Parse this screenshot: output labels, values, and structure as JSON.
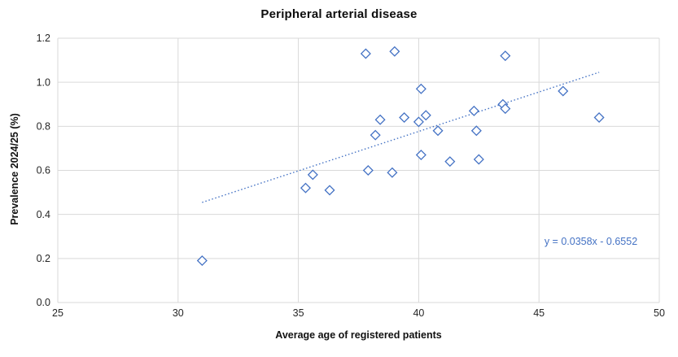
{
  "colors": {
    "marker": "#4472C4",
    "marker_fill": "#ffffff",
    "trendline": "#4472C4",
    "equation_text": "#4472C4",
    "gridline": "#D9D9D9",
    "tick_text": "#262626",
    "title_text": "#0d0d0d"
  },
  "chart_data": {
    "type": "scatter",
    "title": "Peripheral arterial disease",
    "xlabel": "Average age of registered patients",
    "ylabel": "Prevalence 2024/25 (%)",
    "xlim": [
      25,
      50
    ],
    "ylim": [
      0,
      1.2
    ],
    "x_ticks": [
      25,
      30,
      35,
      40,
      45,
      50
    ],
    "y_tick_labels": [
      "0.0",
      "0.2",
      "0.4",
      "0.6",
      "0.8",
      "1.0",
      "1.2"
    ],
    "grid": true,
    "legend": "none",
    "marker_style": "open-diamond",
    "series": [
      {
        "points": [
          [
            31.0,
            0.19
          ],
          [
            35.3,
            0.52
          ],
          [
            35.6,
            0.58
          ],
          [
            36.3,
            0.51
          ],
          [
            37.8,
            1.13
          ],
          [
            37.9,
            0.6
          ],
          [
            38.2,
            0.76
          ],
          [
            38.4,
            0.83
          ],
          [
            38.9,
            0.59
          ],
          [
            39.0,
            1.14
          ],
          [
            39.4,
            0.84
          ],
          [
            40.0,
            0.82
          ],
          [
            40.1,
            0.97
          ],
          [
            40.1,
            0.67
          ],
          [
            40.3,
            0.85
          ],
          [
            40.8,
            0.78
          ],
          [
            41.3,
            0.64
          ],
          [
            42.3,
            0.87
          ],
          [
            42.4,
            0.78
          ],
          [
            42.5,
            0.65
          ],
          [
            43.5,
            0.9
          ],
          [
            43.6,
            0.88
          ],
          [
            43.6,
            1.12
          ],
          [
            46.0,
            0.96
          ],
          [
            47.5,
            0.84
          ]
        ]
      }
    ],
    "trendline": {
      "type": "linear",
      "slope": 0.0358,
      "intercept": -0.6552,
      "equation": "y = 0.0358x - 0.6552",
      "x_start": 31.0,
      "x_end": 47.5,
      "style": "dotted"
    }
  }
}
